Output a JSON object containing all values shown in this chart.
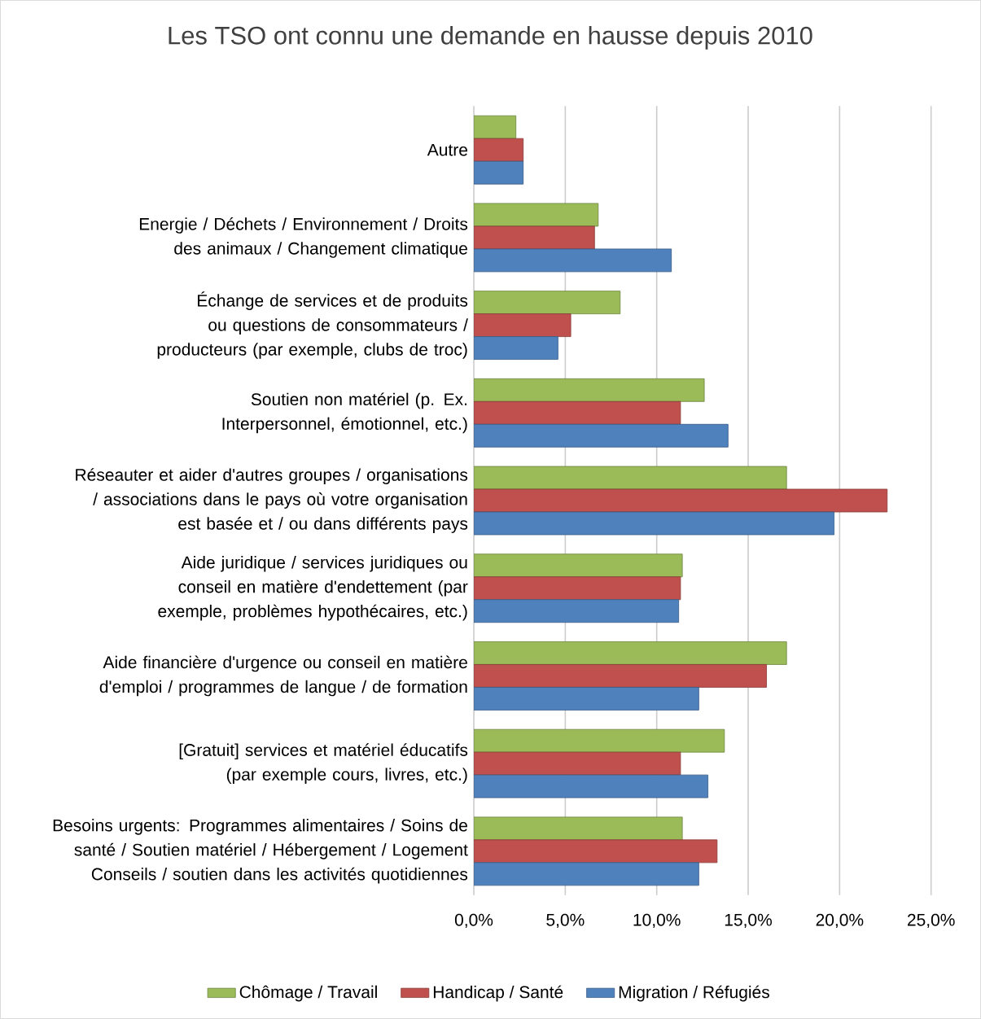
{
  "chart_data": {
    "type": "bar",
    "orientation": "horizontal",
    "title": "Les TSO ont connu une demande en hausse depuis 2010",
    "categories": [
      "Autre",
      "Energie / Déchets / Environnement / Droits des animaux / Changement climatique",
      "Échange de services et de produits ou questions de consommateurs / producteurs (par exemple, clubs de troc)",
      "Soutien non matériel (p. Ex. Interpersonnel, émotionnel, etc.)",
      "Réseauter et aider d'autres groupes / organisations / associations dans le pays où votre organisation est basée et / ou dans différents pays",
      "Aide juridique / services juridiques ou conseil en matière d'endettement (par exemple, problèmes hypothécaires, etc.)",
      "Aide financière d'urgence ou conseil en matière d'emploi / programmes de langue / de formation",
      "[Gratuit] services et matériel éducatifs (par exemple cours, livres, etc.)",
      "Besoins urgents: Programmes alimentaires / Soins de santé / Soutien matériel / Hébergement / Logement Conseils / soutien dans les activités quotidiennes"
    ],
    "series": [
      {
        "name": "Chômage / Travail",
        "color": "#9bbb59",
        "values": [
          2.3,
          6.8,
          8.0,
          12.6,
          17.1,
          11.4,
          17.1,
          13.7,
          11.4
        ]
      },
      {
        "name": "Handicap / Santé",
        "color": "#c0504d",
        "values": [
          2.7,
          6.6,
          5.3,
          11.3,
          22.6,
          11.3,
          16.0,
          11.3,
          13.3
        ]
      },
      {
        "name": "Migration / Réfugiés",
        "color": "#4f81bd",
        "values": [
          2.7,
          10.8,
          4.6,
          13.9,
          19.7,
          11.2,
          12.3,
          12.8,
          12.3
        ]
      }
    ],
    "xlim": [
      0,
      25
    ],
    "xticks": [
      {
        "value": 0,
        "label": "0,0%"
      },
      {
        "value": 5,
        "label": "5,0%"
      },
      {
        "value": 10,
        "label": "10,0%"
      },
      {
        "value": 15,
        "label": "15,0%"
      },
      {
        "value": 20,
        "label": "20,0%"
      },
      {
        "value": 25,
        "label": "25,0%"
      }
    ],
    "grid": "x",
    "legend": "bottom"
  }
}
